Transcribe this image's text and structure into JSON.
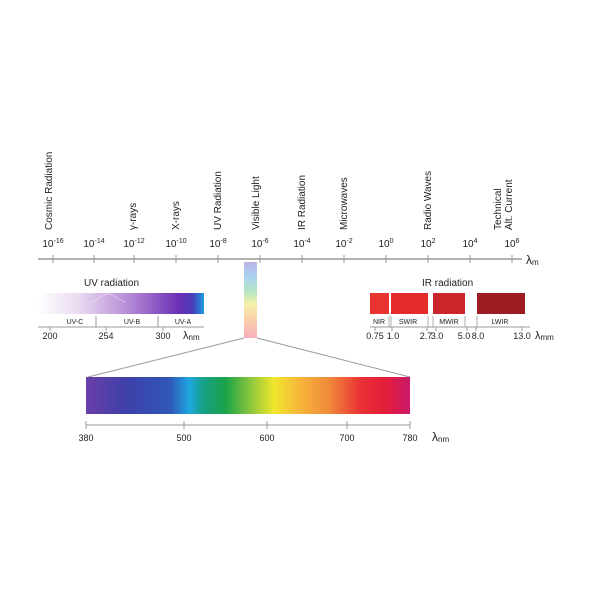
{
  "axis": {
    "unit": "λ",
    "unit_suffix": "m",
    "ticks": [
      {
        "base": "10",
        "exp": "-16"
      },
      {
        "base": "10",
        "exp": "-14"
      },
      {
        "base": "10",
        "exp": "-12"
      },
      {
        "base": "10",
        "exp": "-10"
      },
      {
        "base": "10",
        "exp": "-8"
      },
      {
        "base": "10",
        "exp": "-6"
      },
      {
        "base": "10",
        "exp": "-4"
      },
      {
        "base": "10",
        "exp": "-2"
      },
      {
        "base": "10",
        "exp": "0"
      },
      {
        "base": "10",
        "exp": "2"
      },
      {
        "base": "10",
        "exp": "4"
      },
      {
        "base": "10",
        "exp": "6"
      }
    ],
    "bands": [
      [
        "Cosmic Radiation"
      ],
      [
        "γ-rays"
      ],
      [
        "X-rays"
      ],
      [
        "UV Radiation"
      ],
      [
        "Visible Light"
      ],
      [
        "IR Radiation"
      ],
      [
        "Microwaves"
      ],
      [
        "Radio Waves"
      ],
      [
        "Technical",
        "Alt. Current"
      ]
    ]
  },
  "uv": {
    "title": "UV radiation",
    "sub_labels": [
      "UV-C",
      "UV-B",
      "UV-A"
    ],
    "ticks": [
      "200",
      "254",
      "300"
    ],
    "unit": "λ",
    "unit_suffix": "nm"
  },
  "ir": {
    "title": "IR radiation",
    "sub_labels": [
      "NIR",
      "SWIR",
      "MWIR",
      "LWIR"
    ],
    "ticks": [
      "0.75",
      "1.0",
      "2.7",
      "3.0",
      "5.0",
      "8.0",
      "13.0"
    ],
    "unit": "λ",
    "unit_suffix": "mm"
  },
  "visible": {
    "ticks": [
      "380",
      "500",
      "600",
      "700",
      "780"
    ],
    "unit": "λ",
    "unit_suffix": "nm"
  },
  "colors": {
    "axis": "#999999",
    "text": "#222222",
    "uv_dark": "#6b2fb5",
    "uv_end": "#1e9be0",
    "nir": "#e8332e",
    "swir": "#e32b2b",
    "mwir": "#c9252b",
    "lwir": "#9e1b22"
  }
}
